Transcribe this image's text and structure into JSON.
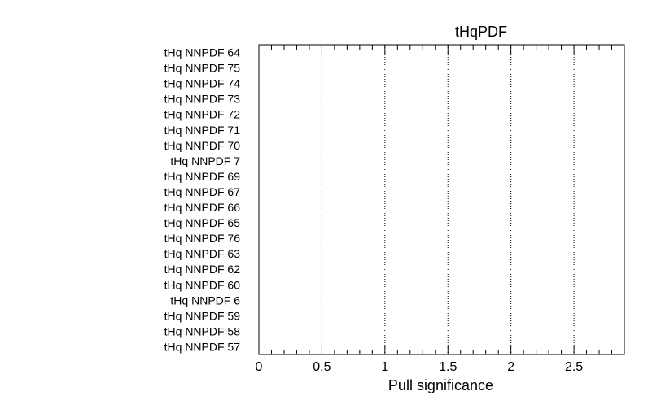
{
  "chart_data": {
    "type": "bar",
    "title": "tHqPDF",
    "xlabel": "Pull significance",
    "ylabel": "",
    "categories": [
      "tHq NNPDF 64",
      "tHq NNPDF 75",
      "tHq NNPDF 74",
      "tHq NNPDF 73",
      "tHq NNPDF 72",
      "tHq NNPDF 71",
      "tHq NNPDF 70",
      "tHq NNPDF 7",
      "tHq NNPDF 69",
      "tHq NNPDF 67",
      "tHq NNPDF 66",
      "tHq NNPDF 65",
      "tHq NNPDF 76",
      "tHq NNPDF 63",
      "tHq NNPDF 62",
      "tHq NNPDF 60",
      "tHq NNPDF 6",
      "tHq NNPDF 59",
      "tHq NNPDF 58",
      "tHq NNPDF 57"
    ],
    "values": [
      0,
      0,
      0,
      0,
      0,
      0,
      0,
      0,
      0,
      0,
      0,
      0,
      0,
      0,
      0,
      0,
      0,
      0,
      0,
      0
    ],
    "orientation": "horizontal",
    "xlim": [
      0,
      2.9
    ],
    "xticks": [
      "0",
      "0.5",
      "1",
      "1.5",
      "2",
      "2.5"
    ],
    "xtick_values": [
      0,
      0.5,
      1,
      1.5,
      2,
      2.5
    ],
    "minor_tick_step": 0.1,
    "grid": "vertical dotted at major ticks",
    "legend": "none"
  }
}
